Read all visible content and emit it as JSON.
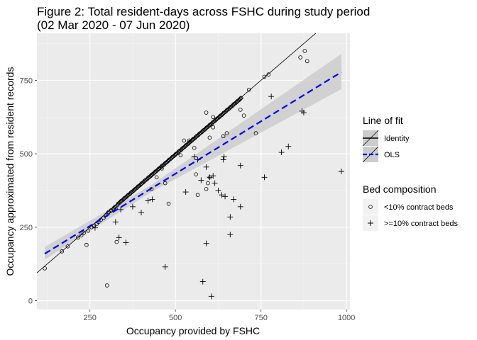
{
  "chart_data": {
    "type": "scatter",
    "title_line1": "Figure 2: Total resident-days across FSHC during study period",
    "title_line2": "(02 Mar 2020 - 07 Jun 2020)",
    "xlabel": "Occupancy provided by FSHC",
    "ylabel": "Occupancy approximated from resident records",
    "xlim": [
      95,
      1010
    ],
    "ylim": [
      -30,
      910
    ],
    "x_ticks": [
      250,
      500,
      750,
      1000
    ],
    "y_ticks": [
      0,
      250,
      500,
      750
    ],
    "grid": true,
    "legend_placement": "right",
    "colors": {
      "panel": "#ebebeb",
      "ols": "#0000ff",
      "band": "#cccccc",
      "identity": "#000000"
    },
    "lines": {
      "identity": {
        "name": "Identity",
        "slope": 1,
        "intercept": 0
      },
      "ols": {
        "name": "OLS",
        "x0": 118,
        "y0": 160,
        "x1": 985,
        "y1": 778,
        "band_lower_start": 140,
        "band_upper_start": 183,
        "band_lower_end": 720,
        "band_upper_end": 840
      }
    },
    "legends": [
      {
        "title": "Line of fit",
        "items": [
          "Identity",
          "OLS"
        ]
      },
      {
        "title": "Bed composition",
        "items": [
          "<10% contract beds",
          ">=10% contract beds"
        ]
      }
    ],
    "series": [
      {
        "name": "<10% contract beds",
        "shape": "circle",
        "points": [
          [
            118,
            110
          ],
          [
            168,
            168
          ],
          [
            185,
            185
          ],
          [
            215,
            215
          ],
          [
            225,
            222
          ],
          [
            232,
            230
          ],
          [
            240,
            190
          ],
          [
            245,
            238
          ],
          [
            255,
            250
          ],
          [
            262,
            255
          ],
          [
            270,
            262
          ],
          [
            275,
            268
          ],
          [
            282,
            275
          ],
          [
            290,
            282
          ],
          [
            298,
            292
          ],
          [
            302,
            298
          ],
          [
            305,
            302
          ],
          [
            310,
            305
          ],
          [
            312,
            308
          ],
          [
            318,
            312
          ],
          [
            320,
            315
          ],
          [
            322,
            318
          ],
          [
            325,
            320
          ],
          [
            328,
            200
          ],
          [
            330,
            325
          ],
          [
            332,
            330
          ],
          [
            335,
            332
          ],
          [
            338,
            335
          ],
          [
            340,
            338
          ],
          [
            342,
            340
          ],
          [
            345,
            342
          ],
          [
            348,
            345
          ],
          [
            350,
            348
          ],
          [
            352,
            350
          ],
          [
            355,
            352
          ],
          [
            358,
            355
          ],
          [
            360,
            358
          ],
          [
            362,
            360
          ],
          [
            365,
            362
          ],
          [
            368,
            365
          ],
          [
            370,
            368
          ],
          [
            372,
            370
          ],
          [
            375,
            372
          ],
          [
            378,
            375
          ],
          [
            380,
            378
          ],
          [
            382,
            380
          ],
          [
            385,
            382
          ],
          [
            388,
            385
          ],
          [
            390,
            388
          ],
          [
            392,
            390
          ],
          [
            395,
            392
          ],
          [
            398,
            395
          ],
          [
            400,
            398
          ],
          [
            402,
            400
          ],
          [
            405,
            402
          ],
          [
            408,
            405
          ],
          [
            410,
            408
          ],
          [
            412,
            410
          ],
          [
            415,
            412
          ],
          [
            418,
            415
          ],
          [
            420,
            418
          ],
          [
            422,
            420
          ],
          [
            425,
            422
          ],
          [
            428,
            425
          ],
          [
            430,
            428
          ],
          [
            432,
            430
          ],
          [
            435,
            432
          ],
          [
            438,
            435
          ],
          [
            440,
            438
          ],
          [
            442,
            440
          ],
          [
            445,
            442
          ],
          [
            448,
            445
          ],
          [
            450,
            448
          ],
          [
            452,
            450
          ],
          [
            455,
            452
          ],
          [
            458,
            455
          ],
          [
            460,
            458
          ],
          [
            462,
            460
          ],
          [
            465,
            462
          ],
          [
            468,
            465
          ],
          [
            470,
            468
          ],
          [
            472,
            470
          ],
          [
            475,
            472
          ],
          [
            478,
            475
          ],
          [
            480,
            478
          ],
          [
            482,
            480
          ],
          [
            485,
            482
          ],
          [
            488,
            485
          ],
          [
            490,
            488
          ],
          [
            492,
            490
          ],
          [
            495,
            492
          ],
          [
            498,
            495
          ],
          [
            500,
            498
          ],
          [
            502,
            500
          ],
          [
            505,
            502
          ],
          [
            508,
            505
          ],
          [
            510,
            508
          ],
          [
            512,
            510
          ],
          [
            515,
            512
          ],
          [
            518,
            515
          ],
          [
            520,
            518
          ],
          [
            522,
            520
          ],
          [
            525,
            522
          ],
          [
            528,
            525
          ],
          [
            530,
            528
          ],
          [
            532,
            530
          ],
          [
            535,
            532
          ],
          [
            538,
            535
          ],
          [
            540,
            538
          ],
          [
            542,
            540
          ],
          [
            545,
            542
          ],
          [
            548,
            545
          ],
          [
            550,
            548
          ],
          [
            552,
            550
          ],
          [
            555,
            552
          ],
          [
            558,
            555
          ],
          [
            560,
            558
          ],
          [
            562,
            560
          ],
          [
            565,
            562
          ],
          [
            568,
            565
          ],
          [
            570,
            568
          ],
          [
            572,
            570
          ],
          [
            575,
            572
          ],
          [
            578,
            575
          ],
          [
            580,
            578
          ],
          [
            582,
            580
          ],
          [
            585,
            582
          ],
          [
            588,
            585
          ],
          [
            590,
            588
          ],
          [
            592,
            590
          ],
          [
            595,
            592
          ],
          [
            598,
            595
          ],
          [
            600,
            598
          ],
          [
            602,
            600
          ],
          [
            605,
            602
          ],
          [
            608,
            605
          ],
          [
            610,
            608
          ],
          [
            612,
            610
          ],
          [
            615,
            612
          ],
          [
            618,
            615
          ],
          [
            620,
            618
          ],
          [
            622,
            620
          ],
          [
            625,
            622
          ],
          [
            628,
            625
          ],
          [
            630,
            628
          ],
          [
            632,
            630
          ],
          [
            635,
            632
          ],
          [
            638,
            635
          ],
          [
            640,
            638
          ],
          [
            642,
            640
          ],
          [
            645,
            642
          ],
          [
            648,
            645
          ],
          [
            650,
            648
          ],
          [
            652,
            650
          ],
          [
            655,
            652
          ],
          [
            658,
            655
          ],
          [
            660,
            658
          ],
          [
            662,
            660
          ],
          [
            665,
            662
          ],
          [
            668,
            665
          ],
          [
            670,
            668
          ],
          [
            672,
            670
          ],
          [
            675,
            672
          ],
          [
            678,
            675
          ],
          [
            680,
            678
          ],
          [
            682,
            680
          ],
          [
            685,
            682
          ],
          [
            688,
            685
          ],
          [
            690,
            688
          ],
          [
            692,
            690
          ],
          [
            715,
            718
          ],
          [
            735,
            570
          ],
          [
            760,
            762
          ],
          [
            772,
            770
          ],
          [
            865,
            828
          ],
          [
            878,
            850
          ],
          [
            885,
            815
          ],
          [
            590,
            640
          ],
          [
            610,
            625
          ],
          [
            595,
            400
          ],
          [
            555,
            520
          ],
          [
            515,
            495
          ],
          [
            470,
            400
          ],
          [
            460,
            450
          ],
          [
            445,
            420
          ],
          [
            430,
            380
          ],
          [
            565,
            360
          ],
          [
            590,
            380
          ],
          [
            600,
            420
          ],
          [
            560,
            430
          ],
          [
            300,
            52
          ],
          [
            480,
            330
          ],
          [
            525,
            545
          ],
          [
            540,
            545
          ],
          [
            600,
            555
          ],
          [
            610,
            590
          ],
          [
            640,
            560
          ],
          [
            650,
            570
          ],
          [
            690,
            650
          ],
          [
            700,
            630
          ]
        ]
      },
      {
        "name": ">=10% contract beds",
        "shape": "plus",
        "points": [
          [
            265,
            248
          ],
          [
            325,
            268
          ],
          [
            335,
            215
          ],
          [
            340,
            310
          ],
          [
            355,
            198
          ],
          [
            375,
            320
          ],
          [
            400,
            300
          ],
          [
            420,
            340
          ],
          [
            432,
            345
          ],
          [
            470,
            115
          ],
          [
            530,
            370
          ],
          [
            555,
            490
          ],
          [
            565,
            480
          ],
          [
            575,
            410
          ],
          [
            580,
            65
          ],
          [
            590,
            195
          ],
          [
            590,
            455
          ],
          [
            600,
            420
          ],
          [
            605,
            15
          ],
          [
            610,
            425
          ],
          [
            615,
            400
          ],
          [
            625,
            375
          ],
          [
            635,
            360
          ],
          [
            640,
            480
          ],
          [
            642,
            490
          ],
          [
            645,
            355
          ],
          [
            660,
            225
          ],
          [
            660,
            285
          ],
          [
            670,
            345
          ],
          [
            690,
            320
          ],
          [
            690,
            460
          ],
          [
            760,
            420
          ],
          [
            780,
            695
          ],
          [
            810,
            505
          ],
          [
            830,
            525
          ],
          [
            870,
            645
          ],
          [
            875,
            640
          ],
          [
            985,
            440
          ]
        ]
      }
    ]
  }
}
